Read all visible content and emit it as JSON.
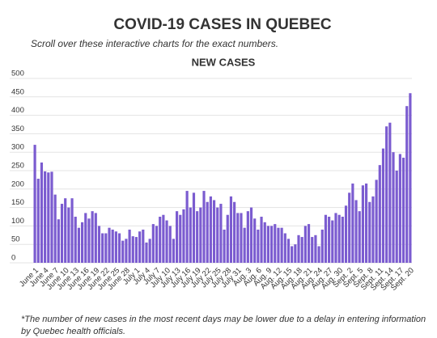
{
  "chart_data": {
    "type": "bar",
    "title": "COVID-19 CASES IN QUEBEC",
    "subtitle": "Scroll over these interactive charts for the exact numbers.",
    "chart_title": "NEW CASES",
    "footnote": "*The number of new cases in the most recent days may be lower due to a delay in entering information by Quebec health officials.",
    "categories": [
      "June 1",
      null,
      null,
      "June 4",
      null,
      null,
      "June 7",
      null,
      null,
      "June 10",
      null,
      null,
      "June 13",
      null,
      null,
      "June 16",
      null,
      null,
      "June 19",
      null,
      null,
      "June 22",
      null,
      null,
      "June 25",
      null,
      null,
      "June 28",
      null,
      null,
      "July 1",
      null,
      null,
      "July 4",
      null,
      null,
      "July 7",
      null,
      null,
      "July 10",
      null,
      null,
      "July 13",
      null,
      null,
      "July 16",
      null,
      null,
      "July 19",
      null,
      null,
      "July 22",
      null,
      null,
      "July 25",
      null,
      null,
      "July 28",
      null,
      null,
      "July 31",
      null,
      null,
      "Aug. 3",
      null,
      null,
      "Aug. 6",
      null,
      null,
      "Aug. 9",
      null,
      null,
      "Aug. 12",
      null,
      null,
      "Aug. 15",
      null,
      null,
      "Aug. 18",
      null,
      null,
      "Aug. 21",
      null,
      null,
      "Aug. 24",
      null,
      null,
      "Aug. 27",
      null,
      null,
      "Aug. 30",
      null,
      null,
      "Sept. 2",
      null,
      null,
      "Sept. 5",
      null,
      null,
      "Sept. 8",
      null,
      null,
      "Sept. 11",
      null,
      null,
      "Sept. 14",
      null,
      null,
      "Sept. 17",
      null,
      null,
      "Sept. 20"
    ],
    "values": [
      320,
      228,
      272,
      248,
      245,
      247,
      185,
      118,
      160,
      175,
      150,
      175,
      125,
      95,
      110,
      135,
      120,
      140,
      135,
      100,
      80,
      80,
      95,
      90,
      85,
      80,
      60,
      65,
      90,
      72,
      70,
      85,
      90,
      55,
      65,
      105,
      100,
      125,
      130,
      115,
      100,
      65,
      140,
      130,
      145,
      195,
      150,
      190,
      140,
      150,
      195,
      165,
      180,
      170,
      150,
      160,
      90,
      130,
      180,
      165,
      135,
      135,
      95,
      140,
      150,
      120,
      90,
      125,
      110,
      100,
      100,
      105,
      95,
      95,
      80,
      65,
      45,
      50,
      75,
      70,
      100,
      105,
      70,
      75,
      45,
      90,
      130,
      125,
      115,
      135,
      130,
      125,
      155,
      190,
      215,
      170,
      140,
      210,
      215,
      165,
      180,
      225,
      265,
      310,
      370,
      380,
      300,
      250,
      295,
      285,
      425,
      460
    ],
    "color": "#7b5cd0",
    "ylim": [
      0,
      500
    ],
    "yticks": [
      0,
      50,
      100,
      150,
      200,
      250,
      300,
      350,
      400,
      450,
      500
    ],
    "grid": true
  }
}
